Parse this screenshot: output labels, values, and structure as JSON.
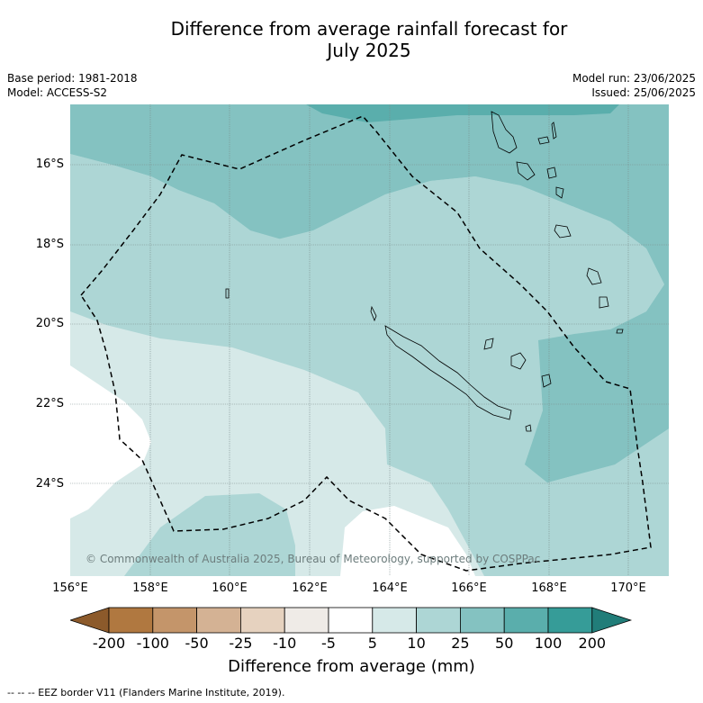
{
  "title": "Difference from average rainfall forecast for July 2025",
  "title_line1": "Difference from average rainfall forecast for",
  "title_line2": "July 2025",
  "meta": {
    "base_period": "Base period: 1981-2018",
    "model": "Model: ACCESS-S2",
    "model_run": "Model run: 23/06/2025",
    "issued": "Issued: 25/06/2025"
  },
  "map": {
    "lat_labels": [
      "16°S",
      "18°S",
      "20°S",
      "22°S",
      "24°S"
    ],
    "lon_labels": [
      "156°E",
      "158°E",
      "160°E",
      "162°E",
      "164°E",
      "166°E",
      "168°E",
      "170°E"
    ],
    "copyright": "© Commonwealth of Australia 2025, Bureau of Meteorology, supported by COSPPac"
  },
  "legend": {
    "ticks": [
      "-200",
      "-100",
      "-50",
      "-25",
      "-10",
      "-5",
      "5",
      "10",
      "25",
      "50",
      "100",
      "200"
    ],
    "colors": [
      "#8c5a2b",
      "#b07840",
      "#c4956a",
      "#d4b294",
      "#e6d2bf",
      "#efebe7",
      "#ffffff",
      "#d6e9e8",
      "#add6d5",
      "#84c2c1",
      "#5aaeac",
      "#369c98",
      "#217d79"
    ],
    "title": "Difference from average (mm)"
  },
  "footnote": "-- -- -- EEZ border V11 (Flanders Marine Institute, 2019)."
}
